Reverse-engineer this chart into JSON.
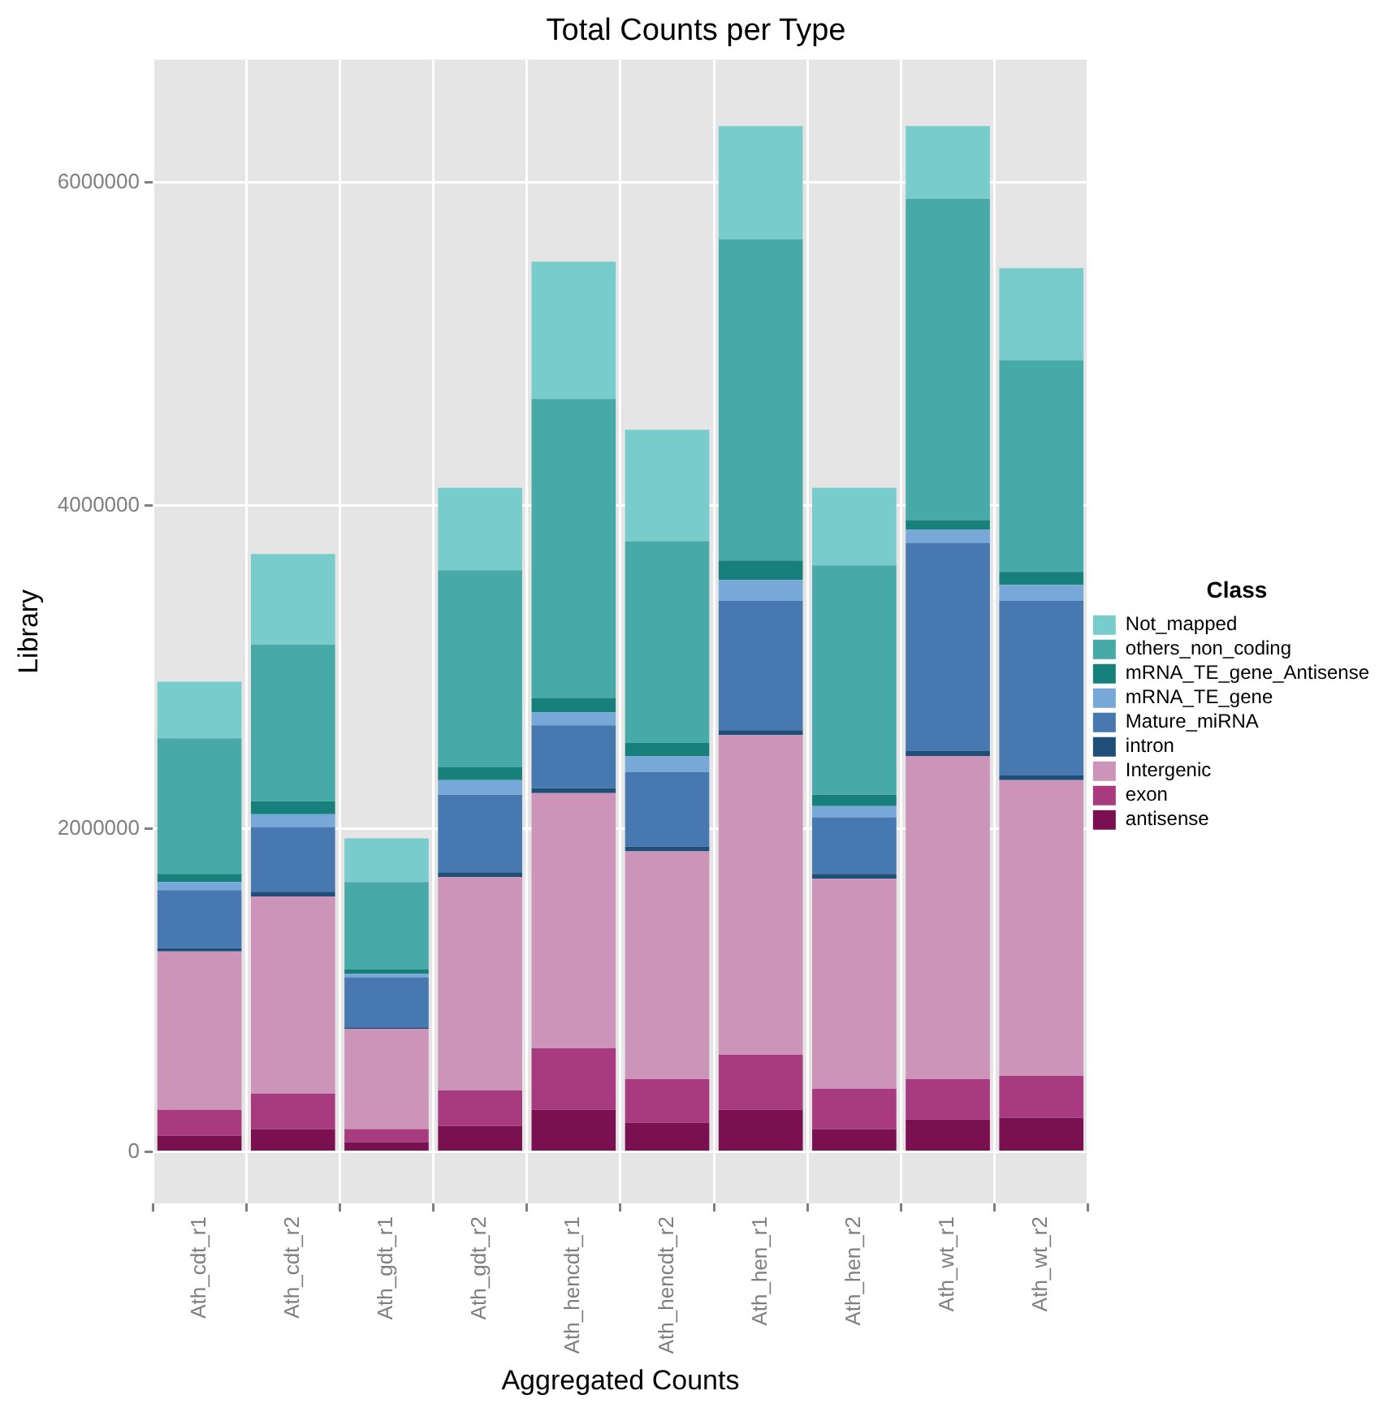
{
  "chart_data": {
    "type": "bar",
    "stacked": true,
    "title": "Total Counts per Type",
    "xlabel": "Aggregated Counts",
    "ylabel": "Library",
    "legend_title": "Class",
    "legend": "right",
    "grid": true,
    "categories": [
      "Ath_cdt_r1",
      "Ath_cdt_r2",
      "Ath_gdt_r1",
      "Ath_gdt_r2",
      "Ath_hencdt_r1",
      "Ath_hencdt_r2",
      "Ath_hen_r1",
      "Ath_hen_r2",
      "Ath_wt_r1",
      "Ath_wt_r2"
    ],
    "ylim": [
      -320000,
      6760000
    ],
    "yticks": [
      0,
      2000000,
      4000000,
      6000000
    ],
    "series": [
      {
        "name": "antisense",
        "color": "#7b1050",
        "values": [
          100000,
          140000,
          60000,
          160000,
          260000,
          180000,
          260000,
          140000,
          200000,
          210000
        ]
      },
      {
        "name": "exon",
        "color": "#a83a80",
        "values": [
          160000,
          220000,
          80000,
          220000,
          380000,
          270000,
          340000,
          250000,
          250000,
          260000
        ]
      },
      {
        "name": "Intergenic",
        "color": "#cc94b8",
        "values": [
          980000,
          1220000,
          620000,
          1320000,
          1580000,
          1410000,
          1980000,
          1300000,
          2000000,
          1830000
        ]
      },
      {
        "name": "intron",
        "color": "#1f4e78",
        "values": [
          20000,
          30000,
          10000,
          30000,
          30000,
          30000,
          30000,
          30000,
          30000,
          30000
        ]
      },
      {
        "name": "Mature_miRNA",
        "color": "#4778b0",
        "values": [
          360000,
          400000,
          310000,
          480000,
          390000,
          460000,
          800000,
          350000,
          1290000,
          1080000
        ]
      },
      {
        "name": "mRNA_TE_gene",
        "color": "#78a8d8",
        "values": [
          50000,
          80000,
          20000,
          90000,
          80000,
          100000,
          130000,
          70000,
          80000,
          100000
        ]
      },
      {
        "name": "mRNA_TE_gene_Antisense",
        "color": "#18807a",
        "values": [
          50000,
          80000,
          30000,
          80000,
          90000,
          80000,
          120000,
          70000,
          60000,
          80000
        ]
      },
      {
        "name": "others_non_coding",
        "color": "#48aaa8",
        "values": [
          840000,
          970000,
          540000,
          1220000,
          1850000,
          1250000,
          1990000,
          1420000,
          1990000,
          1310000
        ]
      },
      {
        "name": "Not_mapped",
        "color": "#78cccc",
        "values": [
          350000,
          560000,
          270000,
          510000,
          850000,
          690000,
          700000,
          480000,
          450000,
          570000
        ]
      }
    ]
  }
}
